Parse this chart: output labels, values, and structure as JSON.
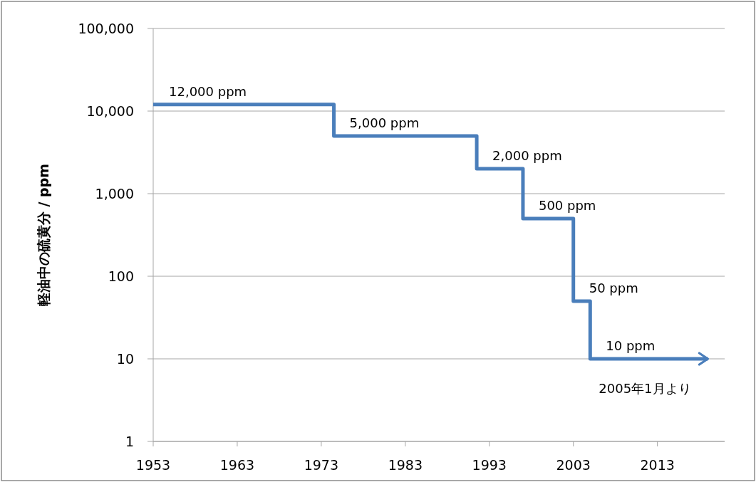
{
  "chart_data": {
    "type": "step",
    "ylabel": "軽油中の硫黄分 / ppm",
    "x": [
      1953,
      1974.5,
      1991.5,
      1997,
      2003,
      2005,
      2019
    ],
    "values": [
      12000,
      5000,
      2000,
      500,
      50,
      10,
      10
    ],
    "value_labels": [
      "12,000 ppm",
      "5,000 ppm",
      "2,000 ppm",
      "500 ppm",
      "50 ppm",
      "10 ppm",
      null
    ],
    "color": "#4a7ebb",
    "xlim": [
      1953,
      2021
    ],
    "xticks": [
      1953,
      1963,
      1973,
      1983,
      1993,
      2003,
      2013
    ],
    "log": "y",
    "ylim": [
      1,
      100000
    ],
    "yticks": [
      {
        "value": 1,
        "label": "1"
      },
      {
        "value": 10,
        "label": "10"
      },
      {
        "value": 100,
        "label": "100"
      },
      {
        "value": 1000,
        "label": "1,000"
      },
      {
        "value": 10000,
        "label": "10,000"
      },
      {
        "value": 100000,
        "label": "100,000"
      }
    ],
    "grid": "y",
    "marker": "none",
    "line_style": "solid",
    "annotations": [
      "2005年1月より"
    ]
  }
}
